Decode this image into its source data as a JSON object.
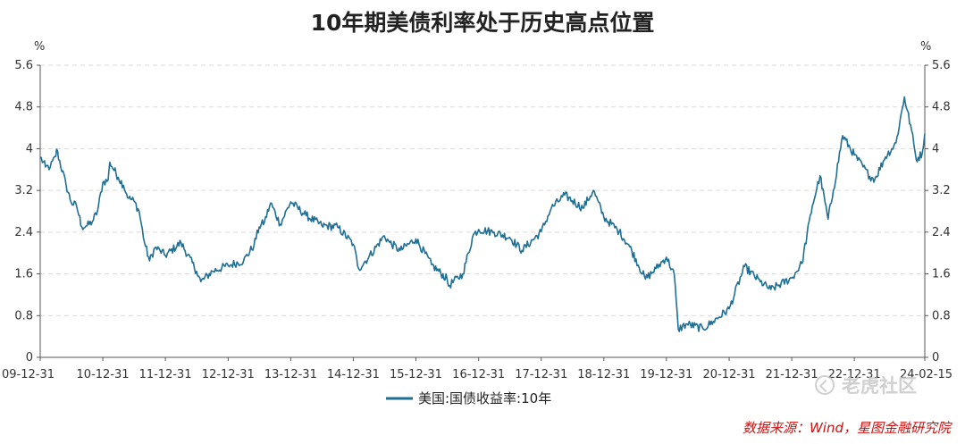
{
  "title": "10年期美债利率处于历史高点位置",
  "units": {
    "left": "%",
    "right": "%"
  },
  "legend": {
    "label": "美国:国债收益率:10年",
    "color": "#1f6f94"
  },
  "source": "数据来源：Wind，星图金融研究院",
  "watermark": "老虎社区",
  "chart_data": {
    "type": "line",
    "title": "10年期美债利率处于历史高点位置",
    "xlabel": "",
    "ylabel": "%",
    "ylim": [
      0,
      5.6
    ],
    "yticks": [
      0,
      0.8,
      1.6,
      2.4,
      3.2,
      4,
      4.8,
      5.6
    ],
    "ytick_labels": [
      "0",
      "0.8",
      "1.6",
      "2.4",
      "3.2",
      "4",
      "4.8",
      "5.6"
    ],
    "xlim": [
      "2009-12-31",
      "2024-02-15"
    ],
    "xtick_labels": [
      "09-12-31",
      "10-12-31",
      "11-12-31",
      "12-12-31",
      "13-12-31",
      "14-12-31",
      "15-12-31",
      "16-12-31",
      "17-12-31",
      "18-12-31",
      "19-12-31",
      "20-12-31",
      "21-12-31",
      "22-12-31",
      "24-02-15"
    ],
    "xtick_dates": [
      "2009-12-31",
      "2010-12-31",
      "2011-12-31",
      "2012-12-31",
      "2013-12-31",
      "2014-12-31",
      "2015-12-31",
      "2016-12-31",
      "2017-12-31",
      "2018-12-31",
      "2019-12-31",
      "2020-12-31",
      "2021-12-31",
      "2022-12-31",
      "2024-02-15"
    ],
    "grid": true,
    "legend_position": "bottom-center",
    "series": [
      {
        "name": "美国:国债收益率:10年",
        "color": "#1f6f94",
        "x": [
          "2009-12-31",
          "2010-01-31",
          "2010-02-28",
          "2010-03-31",
          "2010-04-05",
          "2010-05-31",
          "2010-06-30",
          "2010-07-31",
          "2010-08-31",
          "2010-09-30",
          "2010-10-31",
          "2010-11-30",
          "2010-12-31",
          "2011-01-31",
          "2011-02-10",
          "2011-03-31",
          "2011-04-30",
          "2011-05-31",
          "2011-06-30",
          "2011-07-31",
          "2011-08-31",
          "2011-09-30",
          "2011-10-31",
          "2011-11-30",
          "2011-12-31",
          "2012-03-31",
          "2012-06-30",
          "2012-07-25",
          "2012-09-30",
          "2012-12-31",
          "2013-03-31",
          "2013-05-31",
          "2013-06-30",
          "2013-07-31",
          "2013-09-05",
          "2013-10-31",
          "2013-12-31",
          "2014-03-31",
          "2014-06-30",
          "2014-09-30",
          "2014-12-31",
          "2015-01-31",
          "2015-03-31",
          "2015-06-30",
          "2015-07-31",
          "2015-09-30",
          "2015-12-31",
          "2016-03-31",
          "2016-06-30",
          "2016-07-08",
          "2016-09-30",
          "2016-11-30",
          "2016-12-31",
          "2017-03-31",
          "2017-06-30",
          "2017-09-10",
          "2017-12-31",
          "2018-02-28",
          "2018-05-17",
          "2018-08-31",
          "2018-10-31",
          "2018-12-31",
          "2019-03-31",
          "2019-05-31",
          "2019-08-31",
          "2019-10-31",
          "2019-12-31",
          "2020-02-15",
          "2020-03-09",
          "2020-04-30",
          "2020-07-31",
          "2020-09-30",
          "2020-12-31",
          "2021-03-31",
          "2021-06-30",
          "2021-08-31",
          "2021-12-31",
          "2022-02-28",
          "2022-04-30",
          "2022-06-14",
          "2022-07-31",
          "2022-08-31",
          "2022-10-24",
          "2022-12-31",
          "2023-03-31",
          "2023-04-30",
          "2023-06-30",
          "2023-08-31",
          "2023-10-19",
          "2023-11-30",
          "2023-12-27",
          "2024-01-31",
          "2024-02-15"
        ],
        "values": [
          3.84,
          3.65,
          3.65,
          3.85,
          3.99,
          3.3,
          2.97,
          2.9,
          2.5,
          2.52,
          2.6,
          2.8,
          3.35,
          3.4,
          3.74,
          3.45,
          3.3,
          3.05,
          3.0,
          2.8,
          2.2,
          1.85,
          2.1,
          2.05,
          1.95,
          2.2,
          1.65,
          1.45,
          1.65,
          1.76,
          1.85,
          2.15,
          2.5,
          2.6,
          2.96,
          2.55,
          2.98,
          2.72,
          2.53,
          2.5,
          2.17,
          1.7,
          1.92,
          2.33,
          2.2,
          2.05,
          2.27,
          1.78,
          1.5,
          1.37,
          1.6,
          2.35,
          2.45,
          2.4,
          2.3,
          2.05,
          2.41,
          2.86,
          3.11,
          2.86,
          3.2,
          2.69,
          2.41,
          2.12,
          1.5,
          1.7,
          1.92,
          1.59,
          0.54,
          0.64,
          0.55,
          0.69,
          0.93,
          1.74,
          1.45,
          1.3,
          1.52,
          1.8,
          2.9,
          3.48,
          2.65,
          3.2,
          4.25,
          3.88,
          3.47,
          3.42,
          3.84,
          4.11,
          4.99,
          4.35,
          3.79,
          3.91,
          4.29
        ]
      }
    ]
  }
}
